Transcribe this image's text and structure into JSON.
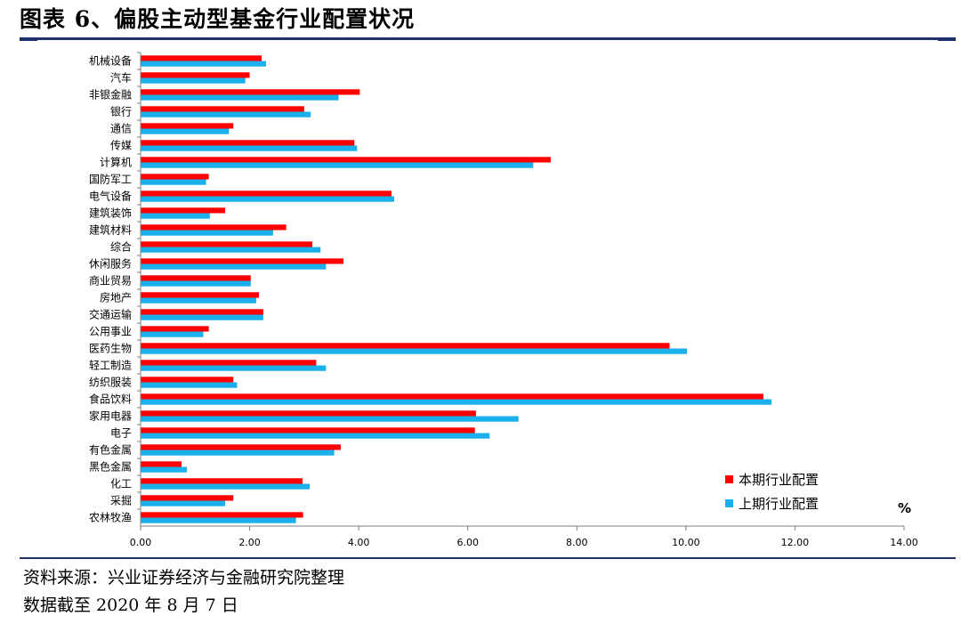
{
  "title": "图表 6、偏股主动型基金行业配置状况",
  "source": "资料来源：兴业证券经济与金融研究院整理",
  "date_note": "数据截至 2020 年 8 月 7 日",
  "colors": {
    "current": "#ff0000",
    "previous": "#1ab0ec",
    "rule": "#1f2f6b"
  },
  "chart_data": {
    "type": "bar",
    "orientation": "horizontal",
    "categories": [
      "机械设备",
      "汽车",
      "非银金融",
      "银行",
      "通信",
      "传媒",
      "计算机",
      "国防军工",
      "电气设备",
      "建筑装饰",
      "建筑材料",
      "综合",
      "休闲服务",
      "商业贸易",
      "房地产",
      "交通运输",
      "公用事业",
      "医药生物",
      "轻工制造",
      "纺织服装",
      "食品饮料",
      "家用电器",
      "电子",
      "有色金属",
      "黑色金属",
      "化工",
      "采掘",
      "农林牧渔"
    ],
    "series": [
      {
        "name": "本期行业配置",
        "values": [
          2.22,
          2.0,
          4.02,
          3.0,
          1.7,
          3.92,
          7.52,
          1.25,
          4.6,
          1.55,
          2.67,
          3.15,
          3.72,
          2.02,
          2.17,
          2.25,
          1.25,
          9.7,
          3.22,
          1.7,
          11.42,
          6.15,
          6.13,
          3.67,
          0.75,
          2.97,
          1.7,
          2.98
        ]
      },
      {
        "name": "上期行业配置",
        "values": [
          2.3,
          1.92,
          3.63,
          3.12,
          1.62,
          3.97,
          7.2,
          1.2,
          4.65,
          1.27,
          2.43,
          3.3,
          3.4,
          2.02,
          2.12,
          2.25,
          1.15,
          10.02,
          3.4,
          1.77,
          11.57,
          6.93,
          6.4,
          3.55,
          0.85,
          3.1,
          1.55,
          2.85
        ]
      }
    ],
    "xlim": [
      0,
      14
    ],
    "xticks": [
      "0.00",
      "2.00",
      "4.00",
      "6.00",
      "8.00",
      "10.00",
      "12.00",
      "14.00"
    ],
    "unit_label": "%",
    "legend_position": "bottom-right",
    "grid": false
  }
}
